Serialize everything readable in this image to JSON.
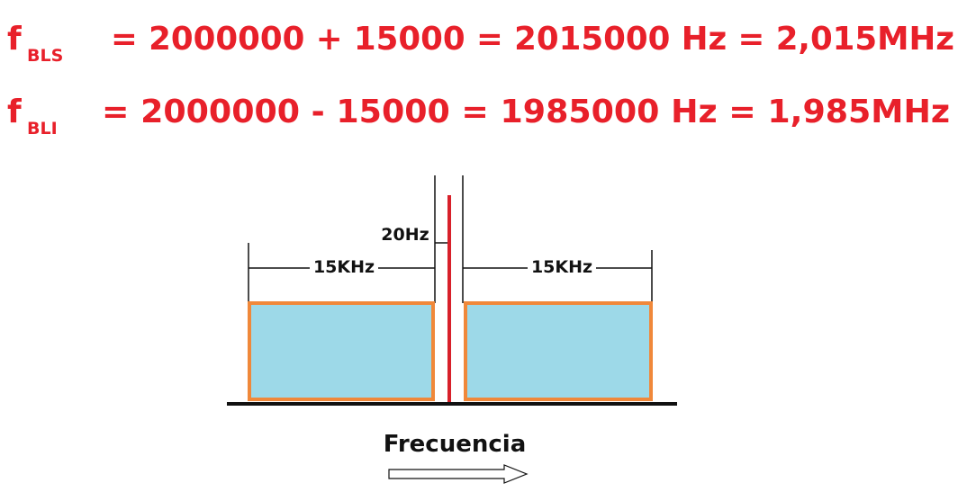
{
  "equations": [
    {
      "symbol": "f",
      "subscript": "BLS",
      "expression": "= 2000000 + 15000 = 2015000 Hz = 2,015MHz"
    },
    {
      "symbol": "f",
      "subscript": "BLI",
      "expression": "= 2000000 - 15000 = 1985000 Hz = 1,985MHz"
    }
  ],
  "diagram": {
    "gap_label": "20Hz",
    "left_band_label": "15KHz",
    "right_band_label": "15KHz",
    "axis_label": "Frecuencia"
  }
}
